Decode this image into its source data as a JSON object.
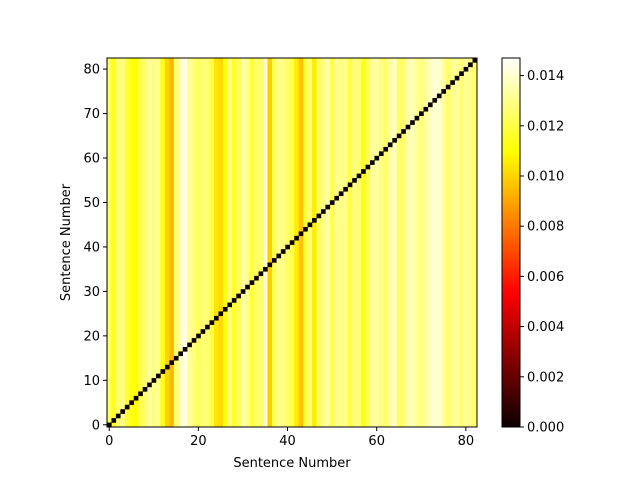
{
  "chart_data": {
    "type": "heatmap",
    "title": "",
    "xlabel": "Sentence Number",
    "ylabel": "Sentence Number",
    "n": 83,
    "xlim": [
      -0.5,
      82.5
    ],
    "ylim": [
      -0.5,
      82.5
    ],
    "x_ticks": [
      0,
      20,
      40,
      60,
      80
    ],
    "y_ticks": [
      0,
      10,
      20,
      30,
      40,
      50,
      60,
      70,
      80
    ],
    "colormap": "hot",
    "colorbar": {
      "range": [
        0.0,
        0.0147
      ],
      "ticks": [
        "0.000",
        "0.002",
        "0.004",
        "0.006",
        "0.008",
        "0.010",
        "0.012",
        "0.014"
      ]
    },
    "diagonal_value": 0.0,
    "column_values": [
      0.0122,
      0.0114,
      0.0126,
      0.0129,
      0.0118,
      0.0111,
      0.011,
      0.0121,
      0.0126,
      0.0133,
      0.0129,
      0.013,
      0.0112,
      0.01,
      0.0094,
      0.0125,
      0.0137,
      0.0144,
      0.0131,
      0.0128,
      0.0123,
      0.0127,
      0.0126,
      0.012,
      0.0104,
      0.0101,
      0.0112,
      0.0128,
      0.0116,
      0.0122,
      0.0134,
      0.013,
      0.0118,
      0.0124,
      0.0126,
      0.014,
      0.0099,
      0.0121,
      0.0131,
      0.0128,
      0.0125,
      0.0121,
      0.0106,
      0.0096,
      0.0118,
      0.0126,
      0.0106,
      0.0124,
      0.0129,
      0.0134,
      0.0121,
      0.0131,
      0.0129,
      0.013,
      0.012,
      0.0128,
      0.0126,
      0.0113,
      0.0122,
      0.0131,
      0.0134,
      0.0128,
      0.0125,
      0.0132,
      0.0138,
      0.0124,
      0.0126,
      0.0134,
      0.0137,
      0.0131,
      0.0128,
      0.0132,
      0.0137,
      0.0141,
      0.0139,
      0.0133,
      0.0125,
      0.013,
      0.0132,
      0.0127,
      0.0131,
      0.0129,
      0.0126
    ]
  }
}
